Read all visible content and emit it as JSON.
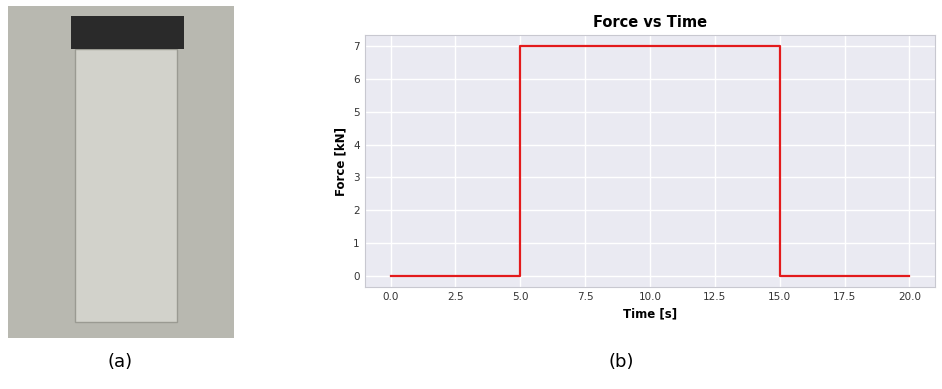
{
  "chart_data": [
    {
      "type": "image",
      "annotations": [
        "(a)"
      ]
    },
    {
      "type": "line",
      "title": "Force vs Time",
      "x_label": "Time [s]",
      "y_label": "Force [kN]",
      "x": [
        0.0,
        5.0,
        5.0,
        15.0,
        15.0,
        20.0
      ],
      "values": [
        0,
        0,
        7,
        7,
        0,
        0
      ],
      "color": "#e31a1c",
      "xlim": [
        -1.0,
        21.0
      ],
      "ylim": [
        -0.35,
        7.35
      ],
      "xticks": [
        0.0,
        2.5,
        5.0,
        7.5,
        10.0,
        12.5,
        15.0,
        17.5,
        20.0
      ],
      "yticks": [
        0,
        1,
        2,
        3,
        4,
        5,
        6,
        7
      ],
      "grid": true,
      "annotations": [
        "(b)"
      ]
    }
  ]
}
